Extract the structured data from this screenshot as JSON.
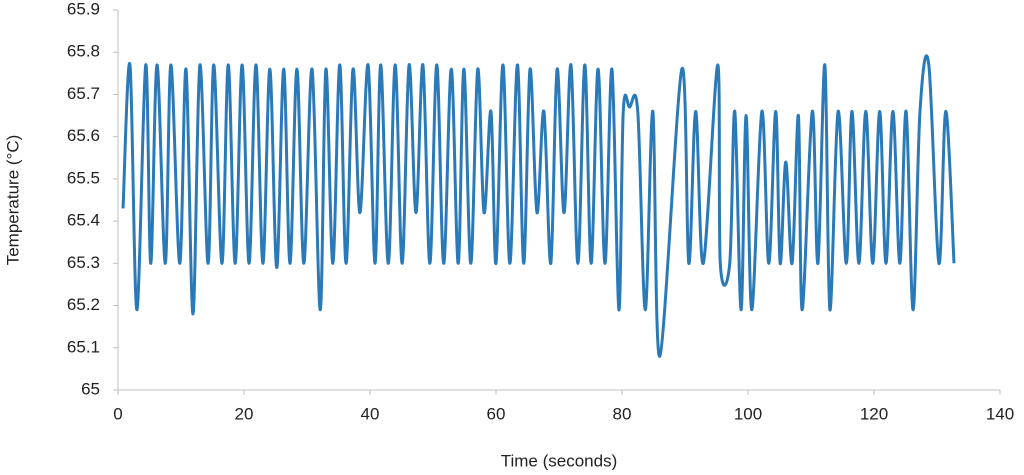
{
  "chart_data": {
    "type": "line",
    "x_label": "Time (seconds)",
    "y_label": "Temperature (°C)",
    "xlim": [
      0,
      140
    ],
    "xticks": [
      0,
      20,
      40,
      60,
      80,
      100,
      120,
      140
    ],
    "ylim": [
      65,
      65.9
    ],
    "yticks": [
      65,
      65.1,
      65.2,
      65.3,
      65.4,
      65.5,
      65.6,
      65.7,
      65.8,
      65.9
    ],
    "grid": false,
    "series": [
      {
        "color": "#2a7ab9",
        "x": [
          0.8,
          1.9,
          3.0,
          4.4,
          5.2,
          6.2,
          7.5,
          8.4,
          9.8,
          10.8,
          11.9,
          13.0,
          14.3,
          15.2,
          16.5,
          17.5,
          18.6,
          19.7,
          20.8,
          21.9,
          23.0,
          24.1,
          25.2,
          26.3,
          27.3,
          28.4,
          29.5,
          30.8,
          32.1,
          33.0,
          34.1,
          35.2,
          36.2,
          37.3,
          38.4,
          39.7,
          40.8,
          41.7,
          42.9,
          44.0,
          45.1,
          46.2,
          47.3,
          48.4,
          49.5,
          50.6,
          51.7,
          52.9,
          54.0,
          54.9,
          56.0,
          57.1,
          58.1,
          59.2,
          60.0,
          61.1,
          62.2,
          63.4,
          64.4,
          65.4,
          66.5,
          67.6,
          68.7,
          69.7,
          70.8,
          71.9,
          73.0,
          74.1,
          75.1,
          76.2,
          77.3,
          78.4,
          79.5,
          80.2,
          81.2,
          82.5,
          83.7,
          84.9,
          86.0,
          89.5,
          90.6,
          91.7,
          92.9,
          95.2,
          95.6,
          97.1,
          97.9,
          98.9,
          99.7,
          100.6,
          102.2,
          103.3,
          104.4,
          105.1,
          106.0,
          107.0,
          108.0,
          108.6,
          110.2,
          111.1,
          112.2,
          113.0,
          114.3,
          115.6,
          116.5,
          117.6,
          118.7,
          119.8,
          120.9,
          121.9,
          123.0,
          124.1,
          125.1,
          126.2,
          127.3,
          128.7,
          130.3,
          131.4,
          132.7
        ],
        "values": [
          65.43,
          65.77,
          65.19,
          65.77,
          65.3,
          65.77,
          65.3,
          65.77,
          65.3,
          65.76,
          65.18,
          65.77,
          65.3,
          65.77,
          65.3,
          65.77,
          65.3,
          65.77,
          65.3,
          65.77,
          65.3,
          65.76,
          65.29,
          65.76,
          65.3,
          65.76,
          65.3,
          65.76,
          65.19,
          65.76,
          65.3,
          65.77,
          65.3,
          65.76,
          65.42,
          65.77,
          65.3,
          65.77,
          65.3,
          65.77,
          65.3,
          65.77,
          65.42,
          65.77,
          65.3,
          65.77,
          65.3,
          65.76,
          65.3,
          65.76,
          65.3,
          65.76,
          65.42,
          65.66,
          65.3,
          65.77,
          65.3,
          65.77,
          65.3,
          65.76,
          65.42,
          65.66,
          65.3,
          65.76,
          65.42,
          65.77,
          65.3,
          65.77,
          65.3,
          65.76,
          65.3,
          65.76,
          65.19,
          65.66,
          65.67,
          65.66,
          65.19,
          65.66,
          65.08,
          65.76,
          65.3,
          65.66,
          65.3,
          65.77,
          65.3,
          65.3,
          65.66,
          65.19,
          65.65,
          65.19,
          65.66,
          65.3,
          65.66,
          65.3,
          65.54,
          65.3,
          65.65,
          65.19,
          65.66,
          65.3,
          65.77,
          65.19,
          65.66,
          65.3,
          65.66,
          65.3,
          65.66,
          65.3,
          65.66,
          65.3,
          65.66,
          65.3,
          65.66,
          65.19,
          65.66,
          65.77,
          65.3,
          65.66,
          65.3
        ]
      }
    ]
  }
}
